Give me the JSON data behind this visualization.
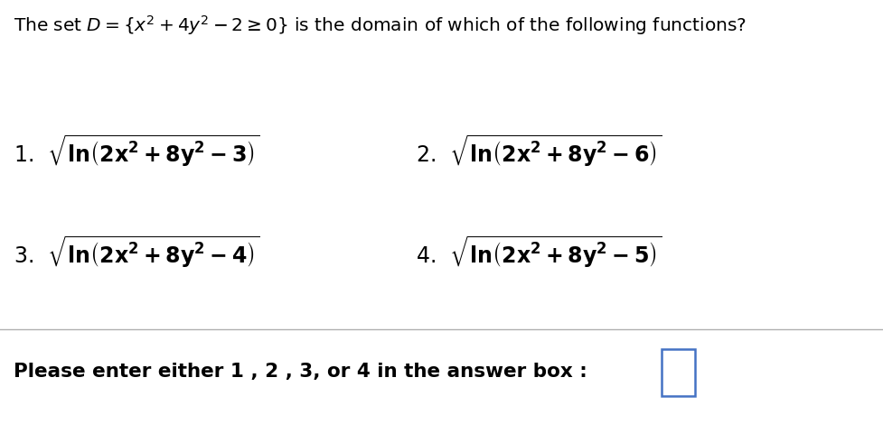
{
  "background_color": "#ffffff",
  "title_text": "The set $D = \\{ x^2 + 4y^2 - 2 \\geq 0 \\}$ is the domain of which of the following functions?",
  "opt1_label": "1.",
  "opt1_expr": "$\\sqrt{\\mathbf{ln}\\left(\\mathbf{2x^2 + 8y^2 - 3}\\right)}$",
  "opt2_label": "2.",
  "opt2_expr": "$\\sqrt{\\mathbf{ln}\\left(\\mathbf{2x^2 + 8y^2 - 6}\\right)}$",
  "opt3_label": "3.",
  "opt3_expr": "$\\sqrt{\\mathbf{ln}\\left(\\mathbf{2x^2 + 8y^2 - 4}\\right)}$",
  "opt4_label": "4.",
  "opt4_expr": "$\\sqrt{\\mathbf{ln}\\left(\\mathbf{2x^2 + 8y^2 - 5}\\right)}$",
  "footer_text": "Please enter either 1 , 2 , 3, or 4 in the answer box :",
  "title_fontsize": 14.5,
  "option_fontsize": 17,
  "footer_fontsize": 15.5,
  "text_color": "#000000",
  "box_color": "#4472C4",
  "separator_color": "#b0b0b0"
}
